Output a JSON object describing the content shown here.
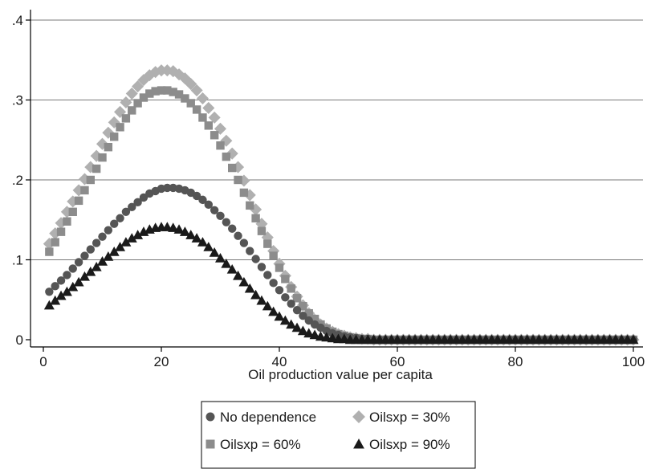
{
  "chart_data": {
    "type": "scatter",
    "title": "",
    "xlabel": "Oil production value per capita",
    "ylabel": "",
    "xlim": [
      0,
      100
    ],
    "ylim": [
      0,
      0.4
    ],
    "xticks": [
      0,
      20,
      40,
      60,
      80,
      100
    ],
    "xtick_labels": [
      "0",
      "20",
      "40",
      "60",
      "80",
      "100"
    ],
    "yticks": [
      0,
      0.1,
      0.2,
      0.3,
      0.4
    ],
    "ytick_labels": [
      "0",
      ".1",
      ".2",
      ".3",
      ".4"
    ],
    "grid": "horizontal",
    "legend_position": "bottom",
    "x_start": 1,
    "x_end": 100,
    "x_step": 1,
    "series": [
      {
        "name": "No dependence",
        "marker": "circle",
        "color": "#555555",
        "values": [
          0.06,
          0.067,
          0.074,
          0.081,
          0.089,
          0.097,
          0.105,
          0.113,
          0.121,
          0.129,
          0.137,
          0.145,
          0.152,
          0.16,
          0.166,
          0.172,
          0.178,
          0.183,
          0.186,
          0.189,
          0.19,
          0.19,
          0.189,
          0.187,
          0.184,
          0.18,
          0.175,
          0.169,
          0.162,
          0.155,
          0.147,
          0.139,
          0.13,
          0.121,
          0.111,
          0.101,
          0.091,
          0.081,
          0.071,
          0.062,
          0.053,
          0.045,
          0.037,
          0.03,
          0.024,
          0.019,
          0.015,
          0.011,
          0.008,
          0.006,
          0.004,
          0.003,
          0.002,
          0.001,
          0.001,
          0,
          0,
          0,
          0,
          0,
          0,
          0,
          0,
          0,
          0,
          0,
          0,
          0,
          0,
          0,
          0,
          0,
          0,
          0,
          0,
          0,
          0,
          0,
          0,
          0,
          0,
          0,
          0,
          0,
          0,
          0,
          0,
          0,
          0,
          0,
          0,
          0,
          0,
          0,
          0,
          0,
          0,
          0,
          0,
          0
        ]
      },
      {
        "name": "Oilsxp = 30%",
        "marker": "diamond",
        "color": "#b0b0b0",
        "values": [
          0.12,
          0.133,
          0.146,
          0.16,
          0.173,
          0.187,
          0.201,
          0.216,
          0.23,
          0.245,
          0.259,
          0.272,
          0.285,
          0.297,
          0.308,
          0.317,
          0.325,
          0.331,
          0.335,
          0.337,
          0.337,
          0.336,
          0.332,
          0.327,
          0.32,
          0.312,
          0.302,
          0.29,
          0.278,
          0.264,
          0.249,
          0.233,
          0.216,
          0.199,
          0.181,
          0.163,
          0.145,
          0.128,
          0.111,
          0.095,
          0.08,
          0.066,
          0.054,
          0.043,
          0.033,
          0.025,
          0.019,
          0.014,
          0.01,
          0.007,
          0.005,
          0.003,
          0.002,
          0.001,
          0.001,
          0,
          0,
          0,
          0,
          0,
          0,
          0,
          0,
          0,
          0,
          0,
          0,
          0,
          0,
          0,
          0,
          0,
          0,
          0,
          0,
          0,
          0,
          0,
          0,
          0,
          0,
          0,
          0,
          0,
          0,
          0,
          0,
          0,
          0,
          0,
          0,
          0,
          0,
          0,
          0,
          0,
          0,
          0,
          0,
          0
        ]
      },
      {
        "name": "Oilsxp = 60%",
        "marker": "square",
        "color": "#8c8c8c",
        "values": [
          0.11,
          0.122,
          0.135,
          0.148,
          0.16,
          0.174,
          0.187,
          0.2,
          0.214,
          0.228,
          0.241,
          0.254,
          0.266,
          0.277,
          0.287,
          0.296,
          0.303,
          0.308,
          0.311,
          0.312,
          0.312,
          0.31,
          0.307,
          0.302,
          0.296,
          0.288,
          0.278,
          0.268,
          0.256,
          0.243,
          0.229,
          0.215,
          0.2,
          0.184,
          0.168,
          0.152,
          0.136,
          0.12,
          0.105,
          0.09,
          0.076,
          0.064,
          0.052,
          0.042,
          0.033,
          0.026,
          0.019,
          0.014,
          0.01,
          0.007,
          0.005,
          0.003,
          0.002,
          0.001,
          0.001,
          0,
          0,
          0,
          0,
          0,
          0,
          0,
          0,
          0,
          0,
          0,
          0,
          0,
          0,
          0,
          0,
          0,
          0,
          0,
          0,
          0,
          0,
          0,
          0,
          0,
          0,
          0,
          0,
          0,
          0,
          0,
          0,
          0,
          0,
          0,
          0,
          0,
          0,
          0,
          0,
          0,
          0,
          0,
          0,
          0
        ]
      },
      {
        "name": "Oilsxp = 90%",
        "marker": "triangle",
        "color": "#1a1a1a",
        "values": [
          0.043,
          0.049,
          0.055,
          0.06,
          0.066,
          0.072,
          0.079,
          0.085,
          0.091,
          0.098,
          0.104,
          0.11,
          0.116,
          0.122,
          0.127,
          0.131,
          0.135,
          0.138,
          0.14,
          0.141,
          0.141,
          0.14,
          0.138,
          0.135,
          0.131,
          0.127,
          0.122,
          0.116,
          0.109,
          0.102,
          0.095,
          0.088,
          0.08,
          0.072,
          0.064,
          0.056,
          0.049,
          0.042,
          0.035,
          0.029,
          0.024,
          0.019,
          0.015,
          0.011,
          0.008,
          0.006,
          0.004,
          0.003,
          0.002,
          0.001,
          0.001,
          0,
          0,
          0,
          0,
          0,
          0,
          0,
          0,
          0,
          0,
          0,
          0,
          0,
          0,
          0,
          0,
          0,
          0,
          0,
          0,
          0,
          0,
          0,
          0,
          0,
          0,
          0,
          0,
          0,
          0,
          0,
          0,
          0,
          0,
          0,
          0,
          0,
          0,
          0,
          0,
          0,
          0,
          0,
          0,
          0,
          0,
          0,
          0,
          0
        ]
      }
    ]
  }
}
